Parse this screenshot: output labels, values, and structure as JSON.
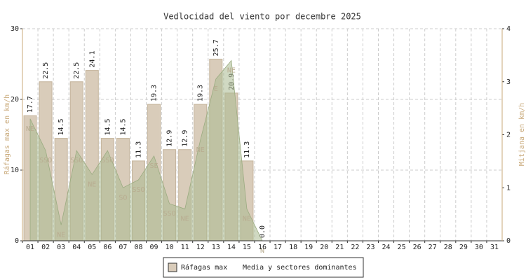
{
  "chart_data": {
    "type": "bar",
    "title": "Vedlocidad del viento por decembre 2025",
    "ylabel": "Ráfagas max en km/h",
    "y2label": "Mitjana en km/h",
    "categories": [
      "01",
      "02",
      "03",
      "04",
      "05",
      "06",
      "07",
      "08",
      "09",
      "10",
      "11",
      "12",
      "13",
      "14",
      "15",
      "16",
      "17",
      "18",
      "19",
      "20",
      "21",
      "22",
      "23",
      "24",
      "25",
      "26",
      "27",
      "28",
      "29",
      "30",
      "31"
    ],
    "series": [
      {
        "name": "Ráfagas max",
        "type": "bar",
        "color": "#d9ccba",
        "values": [
          17.7,
          22.5,
          14.5,
          22.5,
          24.1,
          14.5,
          14.5,
          11.3,
          19.3,
          12.9,
          12.9,
          19.3,
          25.7,
          20.9,
          11.3,
          0,
          null,
          null,
          null,
          null,
          null,
          null,
          null,
          null,
          null,
          null,
          null,
          null,
          null,
          null,
          null
        ],
        "value_labels": [
          "17.7",
          "22.5",
          "14.5",
          "22.5",
          "24.1",
          "14.5",
          "14.5",
          "11.3",
          "19.3",
          "12.9",
          "12.9",
          "19.3",
          "25.7",
          "20.9",
          "11.3",
          "0.0",
          null,
          null,
          null,
          null,
          null,
          null,
          null,
          null,
          null,
          null,
          null,
          null,
          null,
          null,
          null
        ]
      },
      {
        "name": "Media y sectores dominantes",
        "type": "area",
        "axis": "y2",
        "color": "#a9b98f",
        "values": [
          2.3,
          1.7,
          0.3,
          1.7,
          1.25,
          1.7,
          1.0,
          1.15,
          1.6,
          0.7,
          0.6,
          1.9,
          3.05,
          3.4,
          0.6,
          0,
          null,
          null,
          null,
          null,
          null,
          null,
          null,
          null,
          null,
          null,
          null,
          null,
          null,
          null,
          null
        ],
        "sectors": [
          "NE",
          "SSO",
          "NE",
          "SSO",
          "NE",
          "SSO",
          "SO",
          "SSO",
          "SE",
          "SSO",
          "NE",
          "NE",
          "E",
          "NE",
          "NE",
          "N",
          null,
          null,
          null,
          null,
          null,
          null,
          null,
          null,
          null,
          null,
          null,
          null,
          null,
          null,
          null
        ]
      }
    ],
    "ylim": [
      0,
      30
    ],
    "yticks": [
      0,
      10,
      20,
      30
    ],
    "y2lim": [
      0,
      4
    ],
    "y2ticks": [
      0,
      1,
      2,
      3,
      4
    ],
    "grid": true
  }
}
